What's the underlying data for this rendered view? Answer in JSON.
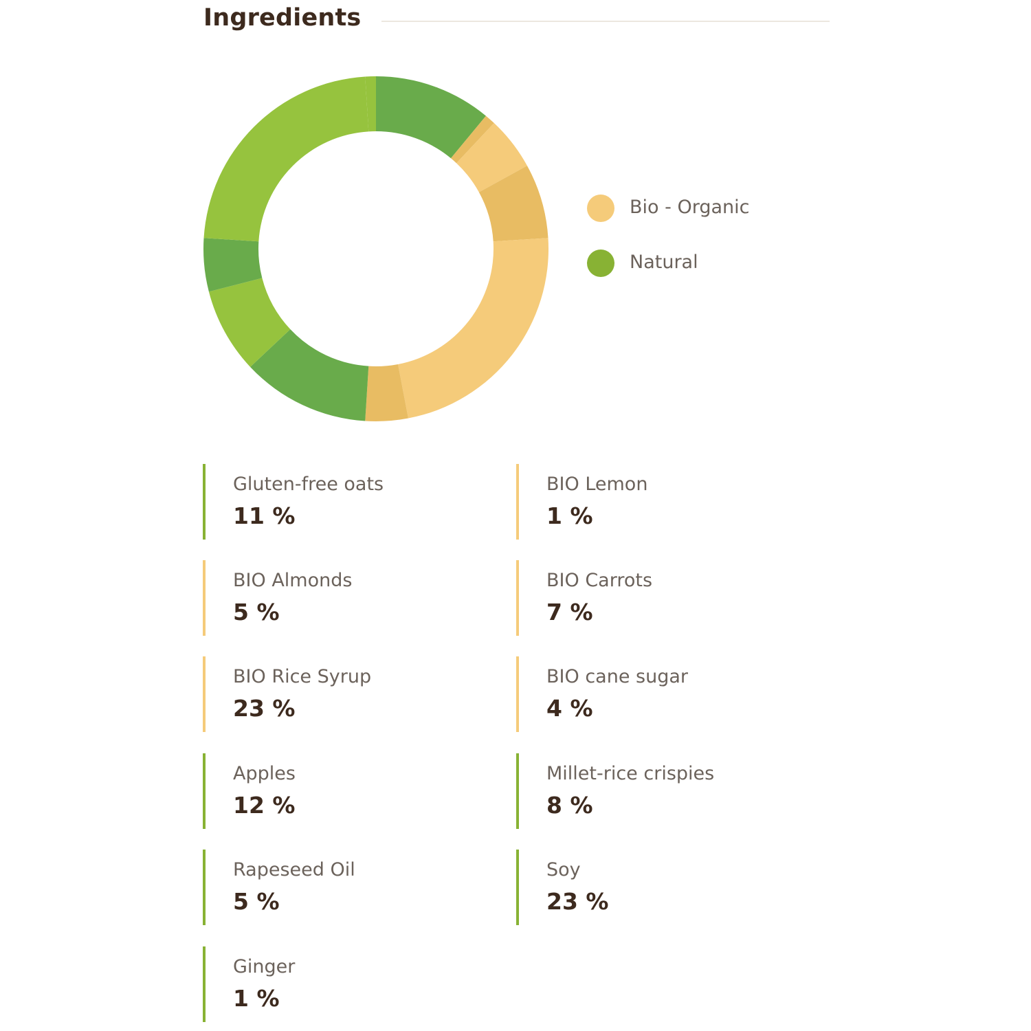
{
  "heading": "Ingredients",
  "colors": {
    "organic": "#f5cb7a",
    "natural": "#88b234",
    "heading": "#3d2a1e",
    "label": "#6b625b"
  },
  "legend": [
    {
      "label": "Bio - Organic",
      "color": "#f5cb7a"
    },
    {
      "label": "Natural",
      "color": "#88b234"
    }
  ],
  "ingredients": [
    {
      "name": "Gluten-free oats",
      "pct": "11 %",
      "category": "natural"
    },
    {
      "name": "BIO Lemon",
      "pct": "1 %",
      "category": "organic"
    },
    {
      "name": "BIO Almonds",
      "pct": "5 %",
      "category": "organic"
    },
    {
      "name": "BIO Carrots",
      "pct": "7 %",
      "category": "organic"
    },
    {
      "name": "BIO Rice Syrup",
      "pct": "23 %",
      "category": "organic"
    },
    {
      "name": "BIO cane sugar",
      "pct": "4 %",
      "category": "organic"
    },
    {
      "name": "Apples",
      "pct": "12 %",
      "category": "natural"
    },
    {
      "name": "Millet-rice crispies",
      "pct": "8 %",
      "category": "natural"
    },
    {
      "name": "Rapeseed Oil",
      "pct": "5 %",
      "category": "natural"
    },
    {
      "name": "Soy",
      "pct": "23 %",
      "category": "natural"
    },
    {
      "name": "Ginger",
      "pct": "1 %",
      "category": "natural"
    }
  ],
  "chart_data": {
    "type": "pie",
    "variant": "donut",
    "start": "top",
    "direction": "clockwise",
    "legend_position": "right",
    "categories": [
      "Gluten-free oats",
      "BIO Lemon",
      "BIO Almonds",
      "BIO Carrots",
      "BIO Rice Syrup",
      "BIO cane sugar",
      "Apples",
      "Millet-rice crispies",
      "Rapeseed Oil",
      "Soy",
      "Ginger"
    ],
    "values": [
      11,
      1,
      5,
      7,
      23,
      4,
      12,
      8,
      5,
      23,
      1
    ],
    "groups": [
      "Natural",
      "Bio - Organic",
      "Bio - Organic",
      "Bio - Organic",
      "Bio - Organic",
      "Bio - Organic",
      "Natural",
      "Natural",
      "Natural",
      "Natural",
      "Natural"
    ],
    "slice_colors": [
      "#69ab4b",
      "#e8bc63",
      "#f5cb7a",
      "#e8bc63",
      "#f5cb7a",
      "#e8bc63",
      "#69ab4b",
      "#96c33e",
      "#69ab4b",
      "#96c33e",
      "#96c33e"
    ]
  }
}
